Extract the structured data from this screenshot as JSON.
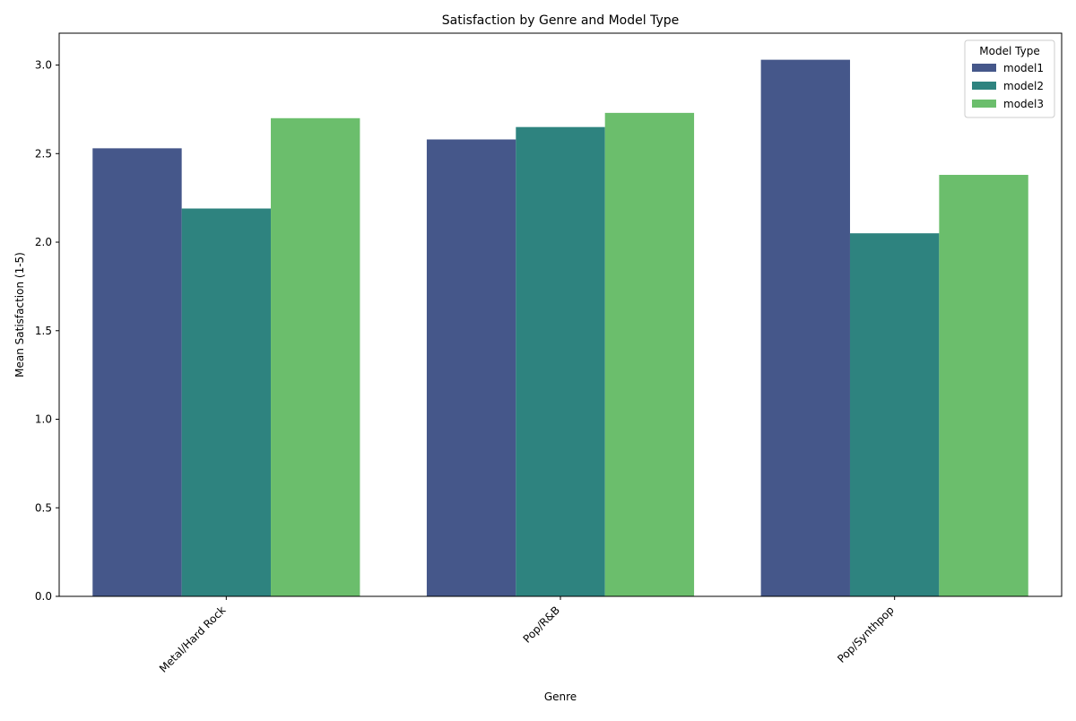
{
  "chart_data": {
    "type": "bar",
    "title": "Satisfaction by Genre and Model Type",
    "xlabel": "Genre",
    "ylabel": "Mean Satisfaction (1-5)",
    "categories": [
      "Metal/Hard Rock",
      "Pop/R&B",
      "Pop/Synthpop"
    ],
    "series": [
      {
        "name": "model1",
        "color": "#45578a",
        "values": [
          2.53,
          2.58,
          3.03
        ]
      },
      {
        "name": "model2",
        "color": "#2e837f",
        "values": [
          2.19,
          2.65,
          2.05
        ]
      },
      {
        "name": "model3",
        "color": "#6bbe6c",
        "values": [
          2.7,
          2.73,
          2.38
        ]
      }
    ],
    "ylim": [
      0,
      3.18
    ],
    "yticks": [
      "0.0",
      "0.5",
      "1.0",
      "1.5",
      "2.0",
      "2.5",
      "3.0"
    ],
    "legend": {
      "title": "Model Type",
      "position": "top-right"
    },
    "grid": false
  }
}
